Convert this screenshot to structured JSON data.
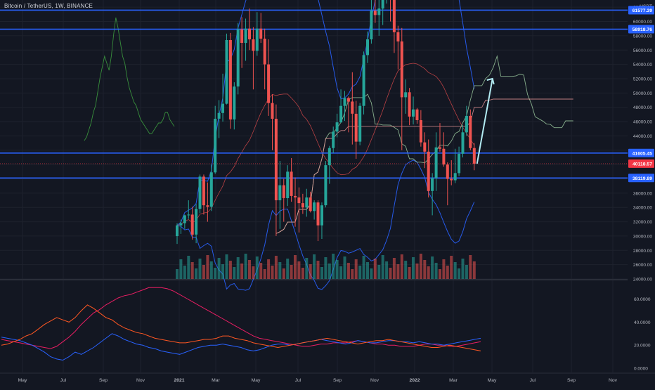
{
  "header": {
    "symbol_line": "Bitcoin / TetherUS, 1W, BINANCE"
  },
  "price_axis": {
    "currency": "USDT",
    "ticks": [
      "62000.00",
      "60000.00",
      "58000.00",
      "56000.00",
      "54000.00",
      "52000.00",
      "50000.00",
      "48000.00",
      "46000.00",
      "44000.00",
      "42000.00",
      "40000.00",
      "38000.00",
      "36000.00",
      "34000.00",
      "32000.00",
      "30000.00",
      "28000.00",
      "26000.00",
      "24000.00"
    ]
  },
  "price_labels": [
    {
      "text": "61577.39",
      "value": 61577.39,
      "kind": "level"
    },
    {
      "text": "58918.76",
      "value": 58918.76,
      "kind": "level"
    },
    {
      "text": "41605.45",
      "value": 41605.45,
      "kind": "level"
    },
    {
      "text": "40118.57",
      "value": 40118.57,
      "kind": "last"
    },
    {
      "text": "38119.89",
      "value": 38119.89,
      "kind": "level"
    }
  ],
  "time_axis": [
    "May",
    "Jul",
    "Sep",
    "Nov",
    "2021",
    "Mar",
    "May",
    "Jul",
    "Sep",
    "Nov",
    "2022",
    "Mar",
    "May",
    "Jul",
    "Sep",
    "Nov"
  ],
  "indicator_axis": [
    "60.0000",
    "40.0000",
    "20.0000",
    "0.0000"
  ],
  "colors": {
    "background": "#131722",
    "up": "#26a69a",
    "down": "#ef5350",
    "level_line": "#2962ff",
    "bollinger": "#2962ff",
    "ichimoku_cloud": "#a5d6a7",
    "rsi_like": "#388e3c",
    "adx": "#e91e63",
    "di_plus": "#2962ff",
    "di_minus": "#ff5722",
    "last_price": "#f23645"
  },
  "chart_data": [
    {
      "type": "candlestick",
      "title": "Bitcoin / TetherUS, 1W, BINANCE",
      "ylabel": "USDT",
      "ylim": [
        24000,
        63000
      ],
      "horizontal_levels": [
        61577.39,
        58918.76,
        41605.45,
        38119.89
      ],
      "last_price": 40118.57,
      "projection_arrow": {
        "from_price": 40118.57,
        "to_price": 52000
      },
      "candles": [
        [
          30000,
          31800,
          28900,
          31500
        ],
        [
          31500,
          32300,
          30300,
          31800
        ],
        [
          31800,
          33000,
          31000,
          32900
        ],
        [
          32900,
          35000,
          32400,
          33000
        ],
        [
          33000,
          34100,
          29500,
          30200
        ],
        [
          30200,
          34500,
          29000,
          33800
        ],
        [
          33800,
          38600,
          33200,
          38300
        ],
        [
          38300,
          38600,
          33000,
          34300
        ],
        [
          34300,
          37500,
          32000,
          34100
        ],
        [
          34100,
          40000,
          33500,
          38900
        ],
        [
          38900,
          48200,
          38700,
          46400
        ],
        [
          46400,
          49000,
          43700,
          47200
        ],
        [
          47200,
          52700,
          46000,
          48500
        ],
        [
          48500,
          58300,
          48400,
          57400
        ],
        [
          57400,
          58400,
          45000,
          46300
        ],
        [
          46300,
          51500,
          44900,
          50900
        ],
        [
          50900,
          59800,
          49800,
          58900
        ],
        [
          58900,
          60600,
          53500,
          57000
        ],
        [
          57000,
          60400,
          54500,
          59000
        ],
        [
          59000,
          61800,
          56000,
          57500
        ],
        [
          57500,
          59200,
          50500,
          55900
        ],
        [
          55900,
          61300,
          55200,
          59000
        ],
        [
          59000,
          61200,
          57000,
          57600
        ],
        [
          57600,
          59000,
          50500,
          54000
        ],
        [
          54000,
          57500,
          46800,
          48600
        ],
        [
          48600,
          49800,
          42000,
          46400
        ],
        [
          46400,
          48400,
          30000,
          35000
        ],
        [
          35000,
          40500,
          31000,
          37100
        ],
        [
          37100,
          38000,
          32000,
          35300
        ],
        [
          35300,
          39900,
          34200,
          39000
        ],
        [
          39000,
          40900,
          34800,
          35600
        ],
        [
          35600,
          38200,
          31300,
          35400
        ],
        [
          35400,
          36800,
          30500,
          34600
        ],
        [
          34600,
          35900,
          33100,
          34000
        ],
        [
          34000,
          36600,
          32700,
          35400
        ],
        [
          35400,
          36200,
          33300,
          33500
        ],
        [
          33500,
          35000,
          32300,
          34700
        ],
        [
          34700,
          35000,
          29300,
          31500
        ],
        [
          31500,
          34700,
          29600,
          34300
        ],
        [
          34300,
          40500,
          34000,
          39900
        ],
        [
          39900,
          42600,
          37300,
          42300
        ],
        [
          42300,
          45300,
          41600,
          44600
        ],
        [
          44600,
          47100,
          43800,
          45900
        ],
        [
          45900,
          50500,
          45800,
          48200
        ],
        [
          48200,
          50300,
          46100,
          49300
        ],
        [
          49300,
          49500,
          44500,
          48800
        ],
        [
          48800,
          52900,
          42800,
          47100
        ],
        [
          47100,
          48900,
          40800,
          43200
        ],
        [
          43200,
          48600,
          42700,
          48200
        ],
        [
          48200,
          55800,
          47000,
          55300
        ],
        [
          55300,
          58600,
          54200,
          57500
        ],
        [
          57500,
          63000,
          56900,
          61500
        ],
        [
          61500,
          67000,
          59800,
          60900
        ],
        [
          60900,
          63700,
          58000,
          61800
        ],
        [
          61800,
          66300,
          59500,
          63300
        ],
        [
          63300,
          69000,
          62500,
          64900
        ],
        [
          64900,
          65600,
          60000,
          63600
        ],
        [
          63600,
          64200,
          55600,
          58500
        ],
        [
          58500,
          59400,
          53300,
          57200
        ],
        [
          57200,
          59100,
          42000,
          49400
        ],
        [
          49400,
          51900,
          47100,
          50100
        ],
        [
          50100,
          50700,
          45500,
          46700
        ],
        [
          46700,
          49500,
          45600,
          47700
        ],
        [
          47700,
          47900,
          45700,
          46200
        ],
        [
          46200,
          47600,
          42500,
          43100
        ],
        [
          43100,
          44500,
          39500,
          41800
        ],
        [
          41800,
          43500,
          35400,
          36300
        ],
        [
          36300,
          38800,
          32900,
          38100
        ],
        [
          38100,
          44500,
          36300,
          42400
        ],
        [
          42400,
          45800,
          41800,
          42200
        ],
        [
          42200,
          44500,
          39700,
          40000
        ],
        [
          40000,
          40300,
          34300,
          38000
        ],
        [
          38000,
          40600,
          37100,
          37800
        ],
        [
          37800,
          42200,
          37400,
          38800
        ],
        [
          38800,
          42500,
          38400,
          41500
        ],
        [
          41500,
          45500,
          41000,
          44500
        ],
        [
          44500,
          48200,
          44000,
          46800
        ],
        [
          46800,
          47700,
          42000,
          42300
        ],
        [
          42300,
          43000,
          39200,
          40118.57
        ]
      ]
    },
    {
      "type": "line",
      "title": "",
      "ylabel": "",
      "ylim": [
        0,
        72
      ],
      "series": [
        {
          "values": [
            25,
            24,
            23,
            22,
            21,
            20,
            19,
            18,
            17,
            19,
            23,
            27,
            32,
            38,
            43,
            48,
            51,
            55,
            58,
            61,
            63,
            64,
            66,
            68,
            70,
            70,
            70,
            69,
            67,
            64,
            61,
            58,
            55,
            52,
            49,
            46,
            43,
            40,
            37,
            34,
            31,
            28,
            26,
            25,
            24,
            23,
            22,
            21,
            20,
            19,
            19,
            20,
            21,
            21,
            22,
            22,
            22,
            23,
            24,
            23,
            22,
            21,
            21,
            20,
            20,
            19,
            19,
            19,
            20,
            21,
            21,
            20,
            20,
            19,
            19,
            20,
            21,
            22,
            23
          ]
        },
        {
          "values": [
            27,
            26,
            25,
            24,
            22,
            20,
            17,
            14,
            10,
            8,
            7,
            10,
            14,
            12,
            15,
            18,
            22,
            26,
            30,
            28,
            25,
            23,
            21,
            20,
            18,
            17,
            15,
            14,
            13,
            12,
            14,
            16,
            18,
            19,
            20,
            20,
            21,
            20,
            19,
            18,
            16,
            15,
            16,
            18,
            20,
            21,
            21,
            20,
            21,
            22,
            23,
            24,
            25,
            24,
            23,
            22,
            21,
            22,
            24,
            23,
            22,
            22,
            23,
            24,
            24,
            23,
            23,
            22,
            23,
            22,
            21,
            21,
            20,
            21,
            22,
            23,
            24,
            25,
            26
          ]
        },
        {
          "values": [
            20,
            21,
            23,
            25,
            28,
            30,
            34,
            38,
            41,
            44,
            42,
            40,
            44,
            50,
            55,
            52,
            48,
            44,
            42,
            38,
            35,
            33,
            31,
            30,
            28,
            26,
            25,
            24,
            23,
            22,
            22,
            23,
            24,
            25,
            25,
            26,
            28,
            28,
            26,
            25,
            24,
            22,
            21,
            20,
            19,
            18,
            19,
            20,
            21,
            22,
            23,
            24,
            25,
            26,
            25,
            24,
            23,
            22,
            21,
            22,
            23,
            24,
            24,
            25,
            24,
            23,
            22,
            21,
            20,
            19,
            18,
            18,
            19,
            20,
            19,
            18,
            17,
            16,
            15
          ]
        }
      ]
    }
  ]
}
